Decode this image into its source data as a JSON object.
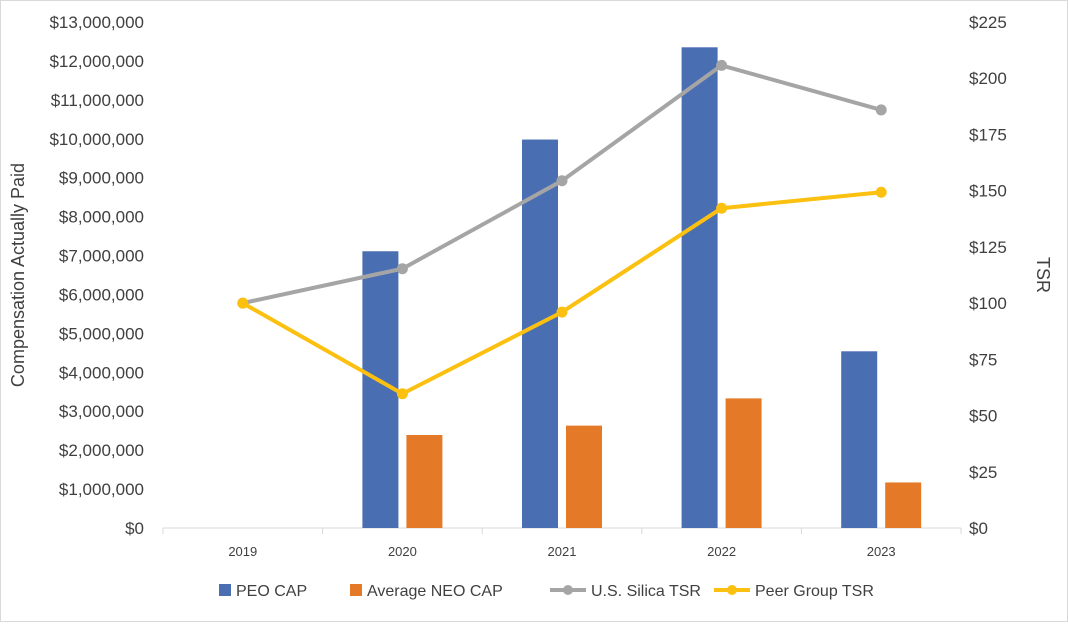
{
  "chart_data": {
    "type": "bar+line",
    "categories": [
      "2019",
      "2020",
      "2021",
      "2022",
      "2023"
    ],
    "ylabel": "Compensation Actually Paid",
    "y2label": "TSR",
    "ylim": [
      0,
      13000000
    ],
    "y2lim": [
      0,
      225
    ],
    "yticks": [
      "$0",
      "$1,000,000",
      "$2,000,000",
      "$3,000,000",
      "$4,000,000",
      "$5,000,000",
      "$6,000,000",
      "$7,000,000",
      "$8,000,000",
      "$9,000,000",
      "$10,000,000",
      "$11,000,000",
      "$12,000,000",
      "$13,000,000"
    ],
    "y2ticks": [
      "$0",
      "$25",
      "$50",
      "$75",
      "$100",
      "$125",
      "$150",
      "$175",
      "$200",
      "$225"
    ],
    "legend_position": "bottom",
    "grid": false,
    "series": [
      {
        "name": "PEO CAP",
        "type": "bar",
        "axis": "left",
        "color": "#4a6eb2",
        "values": [
          null,
          7110000,
          9980000,
          12350000,
          4540000
        ]
      },
      {
        "name": "Average NEO CAP",
        "type": "bar",
        "axis": "left",
        "color": "#e47a27",
        "values": [
          null,
          2390000,
          2630000,
          3330000,
          1170000
        ]
      },
      {
        "name": "U.S. Silica TSR",
        "type": "line",
        "axis": "right",
        "color": "#a5a5a5",
        "values": [
          100,
          115.3,
          154.4,
          205.7,
          185.9
        ]
      },
      {
        "name": "Peer Group TSR",
        "type": "line",
        "axis": "right",
        "color": "#fbc010",
        "values": [
          100,
          59.7,
          96.0,
          142.2,
          149.3
        ]
      }
    ]
  }
}
